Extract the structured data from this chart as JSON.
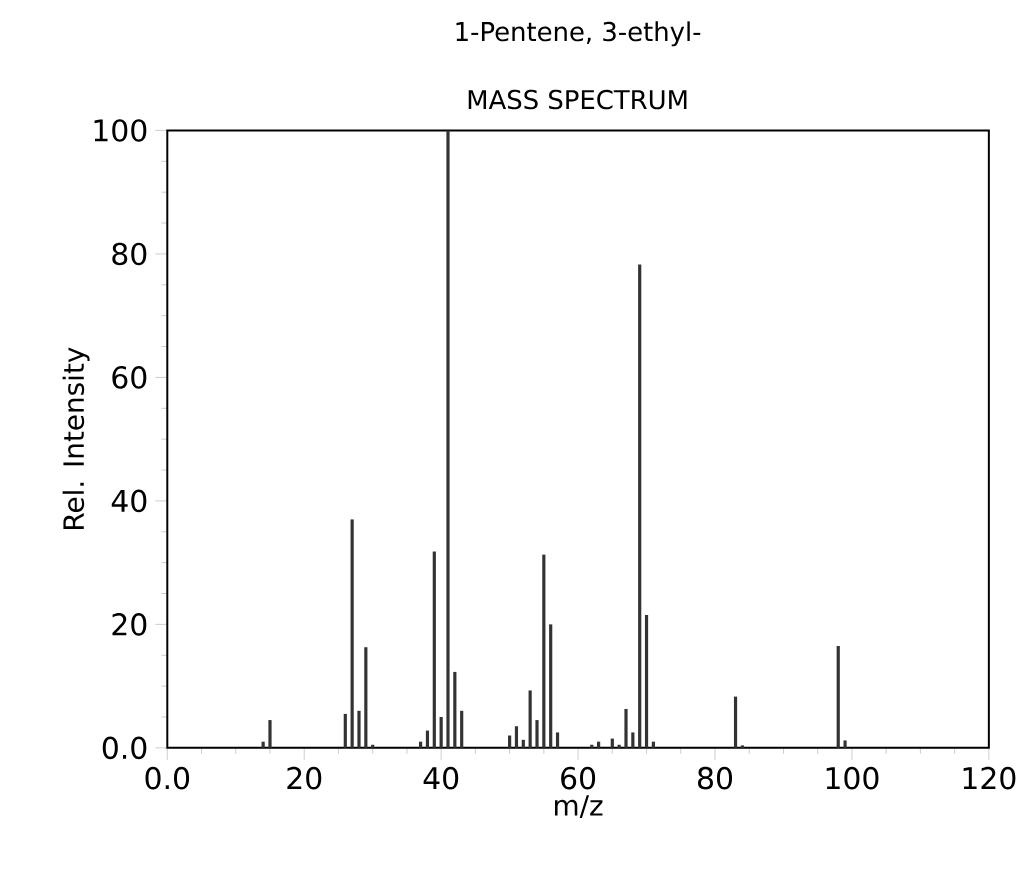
{
  "chart_data": {
    "type": "bar",
    "title": "1-Pentene, 3-ethyl-",
    "subtitle": "MASS SPECTRUM",
    "xlabel": "m/z",
    "ylabel": "Rel. Intensity",
    "x": [
      14,
      15,
      26,
      27,
      28,
      29,
      30,
      37,
      38,
      39,
      40,
      41,
      42,
      43,
      50,
      51,
      52,
      53,
      54,
      55,
      56,
      57,
      62,
      63,
      65,
      66,
      67,
      68,
      69,
      70,
      71,
      83,
      84,
      98,
      99
    ],
    "values": [
      1,
      4.5,
      5.5,
      37,
      6,
      16.3,
      0.5,
      1,
      2.8,
      31.8,
      5,
      100,
      12.3,
      6,
      2,
      3.5,
      1.3,
      9.3,
      4.5,
      31.3,
      20,
      2.5,
      0.5,
      1,
      1.5,
      0.5,
      6.3,
      2.5,
      78.3,
      21.5,
      1,
      8.3,
      0.4,
      16.5,
      1.2
    ],
    "color": "#333333",
    "xlim": [
      0,
      120
    ],
    "ylim": [
      0,
      100
    ],
    "xticks": [
      {
        "value": 0,
        "label": "0.0"
      },
      20,
      40,
      60,
      80,
      100,
      120
    ],
    "yticks": [
      {
        "value": 0,
        "label": "0.0"
      },
      20,
      40,
      60,
      80,
      100
    ]
  }
}
